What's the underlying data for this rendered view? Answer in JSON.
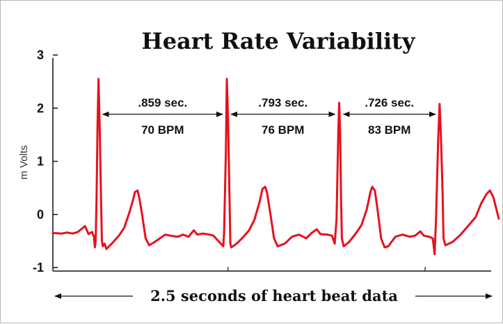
{
  "chart_data": {
    "type": "line",
    "title": "Heart Rate Variability",
    "ylabel": "m Volts",
    "xlabel": "2.5 seconds of heart beat data",
    "ylim": [
      -1,
      3
    ],
    "xlim": [
      0,
      2.5
    ],
    "y_ticks": [
      "3",
      "2",
      "1",
      "0",
      "-1"
    ],
    "y_tick_values": [
      3,
      2,
      1,
      0,
      -1
    ],
    "grid": false,
    "line_color": "#e8101e",
    "series": [
      {
        "values": [
          [
            0.0,
            -0.35
          ],
          [
            0.05,
            -0.36
          ],
          [
            0.08,
            -0.34
          ],
          [
            0.11,
            -0.36
          ],
          [
            0.14,
            -0.33
          ],
          [
            0.18,
            -0.22
          ],
          [
            0.2,
            -0.37
          ],
          [
            0.22,
            -0.33
          ],
          [
            0.23,
            -0.42
          ],
          [
            0.235,
            -0.62
          ],
          [
            0.24,
            -0.5
          ],
          [
            0.245,
            0.3
          ],
          [
            0.25,
            1.6
          ],
          [
            0.256,
            2.55
          ],
          [
            0.262,
            1.7
          ],
          [
            0.27,
            0.3
          ],
          [
            0.275,
            -0.5
          ],
          [
            0.28,
            -0.6
          ],
          [
            0.29,
            -0.55
          ],
          [
            0.3,
            -0.65
          ],
          [
            0.33,
            -0.55
          ],
          [
            0.37,
            -0.4
          ],
          [
            0.4,
            -0.25
          ],
          [
            0.43,
            0.05
          ],
          [
            0.45,
            0.28
          ],
          [
            0.46,
            0.42
          ],
          [
            0.475,
            0.45
          ],
          [
            0.485,
            0.3
          ],
          [
            0.5,
            0.0
          ],
          [
            0.52,
            -0.45
          ],
          [
            0.54,
            -0.58
          ],
          [
            0.57,
            -0.52
          ],
          [
            0.6,
            -0.45
          ],
          [
            0.63,
            -0.38
          ],
          [
            0.66,
            -0.4
          ],
          [
            0.7,
            -0.42
          ],
          [
            0.73,
            -0.38
          ],
          [
            0.76,
            -0.42
          ],
          [
            0.79,
            -0.3
          ],
          [
            0.81,
            -0.38
          ],
          [
            0.84,
            -0.36
          ],
          [
            0.88,
            -0.38
          ],
          [
            0.9,
            -0.4
          ],
          [
            0.955,
            -0.6
          ],
          [
            0.96,
            -0.35
          ],
          [
            0.97,
            1.2
          ],
          [
            0.975,
            2.55
          ],
          [
            0.982,
            1.8
          ],
          [
            0.99,
            0.4
          ],
          [
            0.995,
            -0.55
          ],
          [
            1.0,
            -0.62
          ],
          [
            1.03,
            -0.55
          ],
          [
            1.06,
            -0.45
          ],
          [
            1.1,
            -0.3
          ],
          [
            1.13,
            -0.1
          ],
          [
            1.16,
            0.25
          ],
          [
            1.175,
            0.48
          ],
          [
            1.19,
            0.52
          ],
          [
            1.2,
            0.42
          ],
          [
            1.22,
            0.0
          ],
          [
            1.24,
            -0.45
          ],
          [
            1.26,
            -0.6
          ],
          [
            1.3,
            -0.55
          ],
          [
            1.34,
            -0.42
          ],
          [
            1.38,
            -0.38
          ],
          [
            1.42,
            -0.45
          ],
          [
            1.45,
            -0.35
          ],
          [
            1.48,
            -0.28
          ],
          [
            1.5,
            -0.37
          ],
          [
            1.54,
            -0.38
          ],
          [
            1.565,
            -0.4
          ],
          [
            1.58,
            -0.55
          ],
          [
            1.59,
            -0.1
          ],
          [
            1.6,
            1.5
          ],
          [
            1.605,
            2.1
          ],
          [
            1.61,
            1.6
          ],
          [
            1.615,
            0.4
          ],
          [
            1.62,
            -0.45
          ],
          [
            1.63,
            -0.6
          ],
          [
            1.66,
            -0.52
          ],
          [
            1.7,
            -0.35
          ],
          [
            1.73,
            -0.2
          ],
          [
            1.76,
            0.1
          ],
          [
            1.78,
            0.42
          ],
          [
            1.79,
            0.52
          ],
          [
            1.805,
            0.45
          ],
          [
            1.82,
            0.1
          ],
          [
            1.84,
            -0.45
          ],
          [
            1.86,
            -0.62
          ],
          [
            1.88,
            -0.6
          ],
          [
            1.92,
            -0.42
          ],
          [
            1.96,
            -0.38
          ],
          [
            2.0,
            -0.42
          ],
          [
            2.03,
            -0.4
          ],
          [
            2.06,
            -0.32
          ],
          [
            2.08,
            -0.4
          ],
          [
            2.11,
            -0.42
          ],
          [
            2.13,
            -0.45
          ],
          [
            2.14,
            -0.75
          ],
          [
            2.148,
            -0.1
          ],
          [
            2.16,
            1.4
          ],
          [
            2.168,
            2.08
          ],
          [
            2.175,
            1.5
          ],
          [
            2.185,
            0.4
          ],
          [
            2.19,
            -0.45
          ],
          [
            2.2,
            -0.58
          ],
          [
            2.24,
            -0.52
          ],
          [
            2.28,
            -0.4
          ],
          [
            2.32,
            -0.25
          ],
          [
            2.37,
            -0.05
          ],
          [
            2.4,
            0.2
          ],
          [
            2.43,
            0.38
          ],
          [
            2.45,
            0.45
          ],
          [
            2.47,
            0.32
          ],
          [
            2.49,
            0.05
          ],
          [
            2.5,
            -0.08
          ]
        ]
      }
    ],
    "annotations": [
      {
        "seconds": ".859 sec.",
        "bpm": "70 BPM",
        "from_x": 0.256,
        "to_x": 0.975
      },
      {
        "seconds": ".793 sec.",
        "bpm": "76 BPM",
        "from_x": 0.975,
        "to_x": 1.605
      },
      {
        "seconds": ".726 sec.",
        "bpm": "83 BPM",
        "from_x": 1.605,
        "to_x": 2.168
      }
    ]
  }
}
